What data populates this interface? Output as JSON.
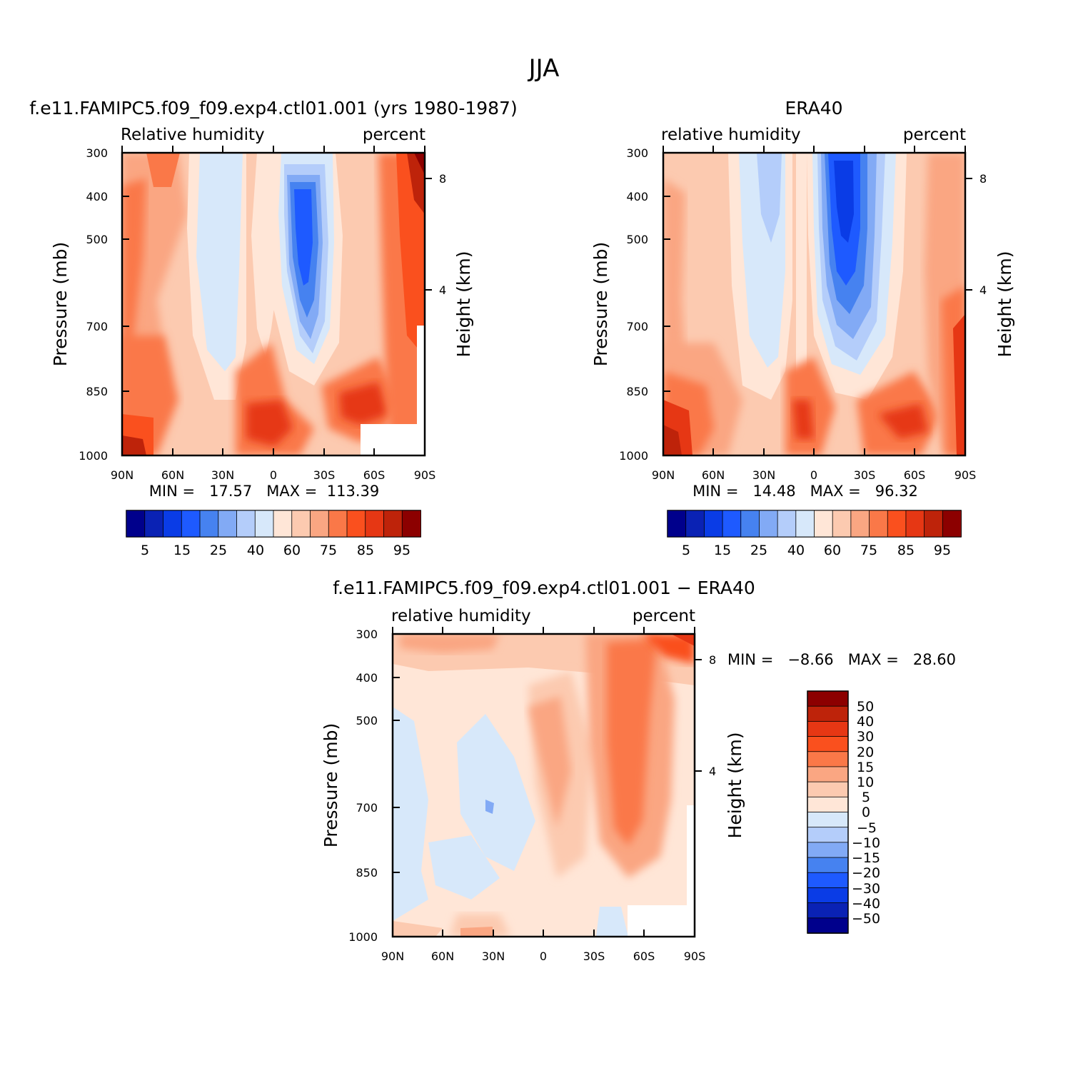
{
  "figure": {
    "title": "JJA"
  },
  "chart_data": [
    {
      "type": "heatmap",
      "title": "f.e11.FAMIPC5.f09_f09.exp4.ctl01.001 (yrs 1980-1987)",
      "left_label": "Relative humidity",
      "right_label": "percent",
      "ylabel": "Pressure (mb)",
      "y2label": "Height (km)",
      "x_ticks": [
        "90N",
        "60N",
        "30N",
        "0",
        "30S",
        "60S",
        "90S"
      ],
      "y_ticks": [
        "300",
        "400",
        "500",
        "700",
        "850",
        "1000"
      ],
      "y2_ticks": [
        "8",
        "4"
      ],
      "ylim": [
        1000,
        300
      ],
      "min_text": "MIN =   17.57   MAX =  113.39",
      "min": 17.57,
      "max": 113.39,
      "colorbar_labels": [
        "5",
        "15",
        "25",
        "40",
        "60",
        "75",
        "85",
        "95"
      ]
    },
    {
      "type": "heatmap",
      "title": "ERA40",
      "left_label": "relative humidity",
      "right_label": "percent",
      "ylabel": "Pressure (mb)",
      "y2label": "Height (km)",
      "x_ticks": [
        "90N",
        "60N",
        "30N",
        "0",
        "30S",
        "60S",
        "90S"
      ],
      "y_ticks": [
        "300",
        "400",
        "500",
        "700",
        "850",
        "1000"
      ],
      "y2_ticks": [
        "8",
        "4"
      ],
      "ylim": [
        1000,
        300
      ],
      "min_text": "MIN =   14.48   MAX =   96.32",
      "min": 14.48,
      "max": 96.32,
      "colorbar_labels": [
        "5",
        "15",
        "25",
        "40",
        "60",
        "75",
        "85",
        "95"
      ]
    },
    {
      "type": "heatmap",
      "title": "f.e11.FAMIPC5.f09_f09.exp4.ctl01.001 − ERA40",
      "left_label": "relative humidity",
      "right_label": "percent",
      "ylabel": "Pressure (mb)",
      "y2label": "Height (km)",
      "x_ticks": [
        "90N",
        "60N",
        "30N",
        "0",
        "30S",
        "60S",
        "90S"
      ],
      "y_ticks": [
        "300",
        "400",
        "500",
        "700",
        "850",
        "1000"
      ],
      "y2_ticks": [
        "8",
        "4"
      ],
      "ylim": [
        1000,
        300
      ],
      "min_text": "MIN =   −8.66   MAX =   28.60",
      "min": -8.66,
      "max": 28.6,
      "colorbar_labels": [
        "50",
        "40",
        "30",
        "20",
        "15",
        "10",
        "5",
        "0",
        "−5",
        "−10",
        "−15",
        "−20",
        "−30",
        "−40",
        "−50"
      ]
    }
  ],
  "colors": {
    "palette": [
      "#00008c",
      "#0a22b4",
      "#0a3ce6",
      "#1e5aff",
      "#4682f0",
      "#82aaf5",
      "#b4cdfa",
      "#d7e8fa",
      "#ffe6d7",
      "#fccab0",
      "#faa682",
      "#fa7848",
      "#fa501e",
      "#e63714",
      "#be230a",
      "#8c0000"
    ]
  }
}
